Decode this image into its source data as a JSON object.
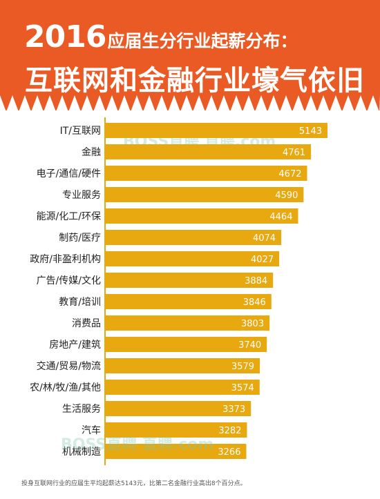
{
  "title": {
    "year": "2016",
    "line1": "应届生分行业起薪分布：",
    "line2": "互联网和金融行业壕气依旧"
  },
  "watermark": "BOSS直聘 直聘.com",
  "footnote": "投身互联网行业的应届生平均起薪达5143元，比第二名金融行业高出8个百分点。",
  "colors": {
    "header": "#ea5a24",
    "bar": "#e8a80f",
    "label_text": "#ffffff",
    "category_text": "#222222"
  },
  "chart_data": {
    "type": "bar",
    "orientation": "horizontal",
    "categories": [
      "IT/互联网",
      "金融",
      "电子/通信/硬件",
      "专业服务",
      "能源/化工/环保",
      "制药/医疗",
      "政府/非盈利机构",
      "广告/传媒/文化",
      "教育/培训",
      "消费品",
      "房地产/建筑",
      "交通/贸易/物流",
      "农/林/牧/渔/其他",
      "生活服务",
      "汽车",
      "机械制造"
    ],
    "values": [
      5143,
      4761,
      4672,
      4590,
      4464,
      4074,
      4027,
      3884,
      3846,
      3803,
      3740,
      3579,
      3574,
      3373,
      3282,
      3266
    ],
    "data_labels": [
      "5143",
      "4761",
      "4672",
      "4590",
      "4464",
      "4074",
      "4027",
      "3884",
      "3846",
      "3803",
      "3740",
      "3579",
      "3574",
      "3373",
      "3282",
      "3266"
    ],
    "xlim": [
      0,
      5143
    ],
    "grid": false,
    "legend": "none"
  }
}
